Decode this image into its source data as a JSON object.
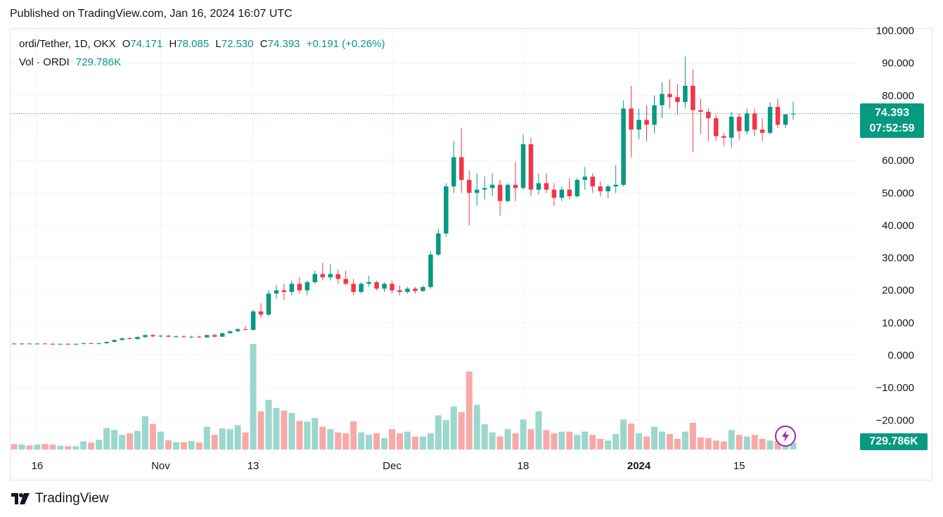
{
  "header": {
    "published": "Published on TradingView.com, Jan 16, 2024 16:07 UTC"
  },
  "legend": {
    "title": "ordi/Tether, 1D, OKX",
    "open_key": "O",
    "open": "74.171",
    "high_key": "H",
    "high": "78.085",
    "low_key": "L",
    "low": "72.530",
    "close_key": "C",
    "close": "74.393",
    "change": "+0.191 (+0.26%)",
    "vol_label": "Vol · ORDI",
    "vol_value": "729.786K"
  },
  "badges": {
    "price": "74.393",
    "countdown": "07:52:59",
    "volume": "729.786K"
  },
  "brand": {
    "name": "TradingView"
  },
  "colors": {
    "up": "#089981",
    "down": "#f23645",
    "up_vol": "#9bd7cd",
    "down_vol": "#f7a9a7",
    "grid": "#f0f3fa",
    "text": "#131722"
  },
  "icons": {
    "brand": "tradingview-logo-icon",
    "alert": "flash-icon"
  },
  "chart_data": {
    "type": "candlestick",
    "title": "ordi/Tether, 1D, OKX",
    "ylim": [
      -30,
      100
    ],
    "y_ticks": [
      "100.000",
      "90.000",
      "80.000",
      "70.000",
      "60.000",
      "50.000",
      "40.000",
      "30.000",
      "20.000",
      "10.000",
      "0.000",
      "−10.000",
      "−20.000"
    ],
    "y_tick_values": [
      100,
      90,
      80,
      70,
      60,
      50,
      40,
      30,
      20,
      10,
      0,
      -10,
      -20
    ],
    "x_ticks": [
      "16",
      "Nov",
      "13",
      "Dec",
      "18",
      "2024",
      "15"
    ],
    "x_tick_days": [
      3,
      19,
      31,
      49,
      66,
      81,
      94
    ],
    "last_price": 74.393,
    "grid": true,
    "volume_overlay": true,
    "ohlc": [
      [
        3.6,
        3.8,
        3.3,
        3.5
      ],
      [
        3.5,
        3.7,
        3.3,
        3.6
      ],
      [
        3.6,
        3.8,
        3.4,
        3.5
      ],
      [
        3.5,
        3.7,
        3.3,
        3.6
      ],
      [
        3.6,
        3.8,
        3.4,
        3.5
      ],
      [
        3.5,
        3.7,
        3.2,
        3.4
      ],
      [
        3.4,
        3.6,
        3.2,
        3.5
      ],
      [
        3.5,
        3.7,
        3.3,
        3.4
      ],
      [
        3.4,
        3.6,
        3.2,
        3.5
      ],
      [
        3.5,
        3.8,
        3.3,
        3.7
      ],
      [
        3.7,
        3.9,
        3.4,
        3.5
      ],
      [
        3.5,
        3.8,
        3.3,
        3.7
      ],
      [
        3.7,
        4.2,
        3.6,
        4.1
      ],
      [
        4.1,
        4.8,
        4.0,
        4.7
      ],
      [
        4.7,
        5.4,
        4.5,
        5.2
      ],
      [
        5.2,
        5.6,
        4.9,
        5.0
      ],
      [
        5.0,
        5.8,
        4.8,
        5.6
      ],
      [
        5.6,
        6.4,
        5.4,
        6.2
      ],
      [
        6.2,
        6.5,
        5.6,
        5.8
      ],
      [
        5.8,
        6.2,
        5.5,
        6.0
      ],
      [
        6.0,
        6.3,
        5.6,
        5.7
      ],
      [
        5.7,
        6.0,
        5.4,
        5.8
      ],
      [
        5.8,
        6.1,
        5.4,
        5.6
      ],
      [
        5.6,
        6.0,
        5.3,
        5.7
      ],
      [
        5.7,
        6.0,
        5.3,
        5.5
      ],
      [
        5.5,
        6.3,
        5.4,
        6.2
      ],
      [
        6.2,
        6.6,
        5.5,
        5.7
      ],
      [
        5.7,
        6.9,
        5.6,
        6.8
      ],
      [
        6.8,
        7.6,
        6.6,
        7.4
      ],
      [
        7.4,
        8.3,
        7.2,
        8.0
      ],
      [
        8.0,
        9.0,
        7.6,
        7.8
      ],
      [
        7.8,
        14.0,
        7.6,
        13.5
      ],
      [
        13.5,
        16.0,
        11.5,
        12.5
      ],
      [
        12.5,
        20.0,
        12.0,
        19.0
      ],
      [
        19.0,
        21.5,
        17.5,
        20.0
      ],
      [
        20.0,
        22.0,
        17.0,
        19.5
      ],
      [
        19.5,
        23.0,
        18.5,
        22.0
      ],
      [
        22.0,
        24.0,
        19.0,
        20.0
      ],
      [
        20.0,
        23.0,
        18.5,
        22.5
      ],
      [
        22.5,
        26.0,
        22.0,
        25.0
      ],
      [
        25.0,
        28.5,
        23.0,
        24.0
      ],
      [
        24.0,
        28.0,
        23.0,
        25.0
      ],
      [
        25.0,
        26.5,
        22.0,
        23.5
      ],
      [
        23.5,
        26.0,
        21.5,
        22.0
      ],
      [
        22.0,
        23.5,
        18.5,
        19.5
      ],
      [
        19.5,
        22.5,
        19.0,
        22.0
      ],
      [
        22.0,
        24.5,
        21.0,
        22.5
      ],
      [
        22.5,
        23.0,
        20.0,
        20.5
      ],
      [
        20.5,
        22.5,
        19.5,
        22.0
      ],
      [
        22.0,
        23.0,
        19.0,
        20.0
      ],
      [
        20.0,
        21.5,
        18.5,
        19.5
      ],
      [
        19.5,
        21.0,
        19.0,
        20.5
      ],
      [
        20.5,
        21.0,
        19.0,
        19.8
      ],
      [
        19.8,
        21.5,
        19.5,
        21.0
      ],
      [
        21.0,
        32.0,
        20.5,
        31.0
      ],
      [
        31.0,
        39.0,
        30.5,
        37.5
      ],
      [
        37.5,
        53.0,
        36.5,
        52.0
      ],
      [
        52.0,
        66.0,
        50.0,
        61.0
      ],
      [
        61.0,
        70.0,
        50.0,
        54.0
      ],
      [
        54.0,
        57.0,
        40.0,
        50.0
      ],
      [
        50.0,
        56.0,
        46.0,
        51.0
      ],
      [
        51.0,
        55.0,
        48.0,
        51.5
      ],
      [
        51.5,
        56.0,
        49.0,
        52.5
      ],
      [
        52.5,
        54.0,
        43.0,
        47.5
      ],
      [
        47.5,
        53.0,
        47.0,
        52.5
      ],
      [
        52.5,
        59.5,
        47.5,
        51.5
      ],
      [
        51.5,
        68.0,
        51.0,
        65.0
      ],
      [
        65.0,
        67.0,
        49.0,
        51.0
      ],
      [
        51.0,
        56.0,
        49.5,
        53.0
      ],
      [
        53.0,
        56.0,
        50.0,
        51.0
      ],
      [
        51.0,
        53.0,
        46.0,
        48.5
      ],
      [
        48.5,
        52.0,
        47.5,
        51.0
      ],
      [
        51.0,
        54.5,
        48.0,
        49.0
      ],
      [
        49.0,
        54.5,
        48.5,
        54.0
      ],
      [
        54.0,
        58.0,
        51.0,
        55.0
      ],
      [
        55.0,
        56.0,
        50.0,
        52.0
      ],
      [
        52.0,
        53.5,
        49.0,
        50.5
      ],
      [
        50.5,
        52.5,
        48.5,
        52.0
      ],
      [
        52.0,
        58.5,
        50.0,
        52.5
      ],
      [
        52.5,
        78.5,
        52.0,
        76.0
      ],
      [
        76.0,
        83.0,
        61.0,
        69.5
      ],
      [
        69.5,
        76.0,
        66.5,
        72.5
      ],
      [
        72.5,
        77.0,
        66.0,
        71.0
      ],
      [
        71.0,
        80.0,
        68.5,
        77.0
      ],
      [
        77.0,
        84.0,
        73.0,
        80.5
      ],
      [
        80.5,
        85.0,
        76.0,
        79.5
      ],
      [
        79.5,
        83.5,
        74.0,
        78.0
      ],
      [
        78.0,
        92.0,
        76.0,
        83.0
      ],
      [
        83.0,
        88.0,
        62.5,
        75.5
      ],
      [
        75.5,
        79.0,
        68.0,
        75.0
      ],
      [
        75.0,
        76.0,
        66.0,
        73.0
      ],
      [
        73.0,
        74.0,
        66.0,
        67.5
      ],
      [
        67.5,
        68.5,
        64.5,
        67.0
      ],
      [
        67.0,
        75.0,
        64.0,
        73.5
      ],
      [
        73.5,
        74.5,
        66.5,
        69.0
      ],
      [
        69.0,
        76.0,
        68.0,
        74.5
      ],
      [
        74.5,
        76.0,
        67.5,
        69.5
      ],
      [
        69.5,
        73.0,
        66.0,
        68.5
      ],
      [
        68.5,
        78.0,
        68.0,
        76.5
      ],
      [
        76.5,
        79.0,
        70.0,
        71.0
      ],
      [
        71.0,
        74.0,
        70.0,
        74.2
      ],
      [
        74.171,
        78.085,
        72.53,
        74.393
      ]
    ],
    "volume": [
      3.3,
      3.0,
      2.5,
      3.0,
      3.3,
      3.0,
      2.3,
      2.0,
      2.0,
      5.0,
      4.2,
      6.0,
      13.2,
      12.0,
      9.0,
      10.0,
      11.5,
      20.5,
      15.7,
      11.0,
      5.7,
      4.5,
      4.5,
      5.3,
      4.3,
      14.0,
      9.0,
      13.0,
      12.5,
      15.0,
      10.5,
      65.0,
      23.5,
      30.5,
      25.5,
      24.0,
      22.5,
      17.5,
      17.2,
      19.5,
      14.0,
      12.5,
      10.5,
      10.0,
      17.3,
      10.5,
      9.0,
      10.0,
      7.0,
      12.5,
      10.0,
      11.0,
      8.0,
      8.0,
      10.0,
      21.0,
      18.0,
      26.5,
      23.0,
      48.0,
      27.5,
      15.5,
      10.5,
      8.0,
      12.5,
      10.0,
      18.5,
      12.5,
      23.5,
      12.0,
      10.0,
      11.0,
      11.0,
      9.0,
      11.0,
      9.0,
      6.5,
      5.5,
      9.5,
      18.5,
      16.0,
      10.0,
      8.0,
      14.0,
      11.0,
      9.5,
      6.5,
      11.0,
      16.5,
      7.5,
      7.0,
      5.5,
      5.0,
      12.0,
      9.0,
      8.0,
      9.0,
      6.5,
      5.5,
      5.0,
      4.5,
      4.0
    ]
  }
}
